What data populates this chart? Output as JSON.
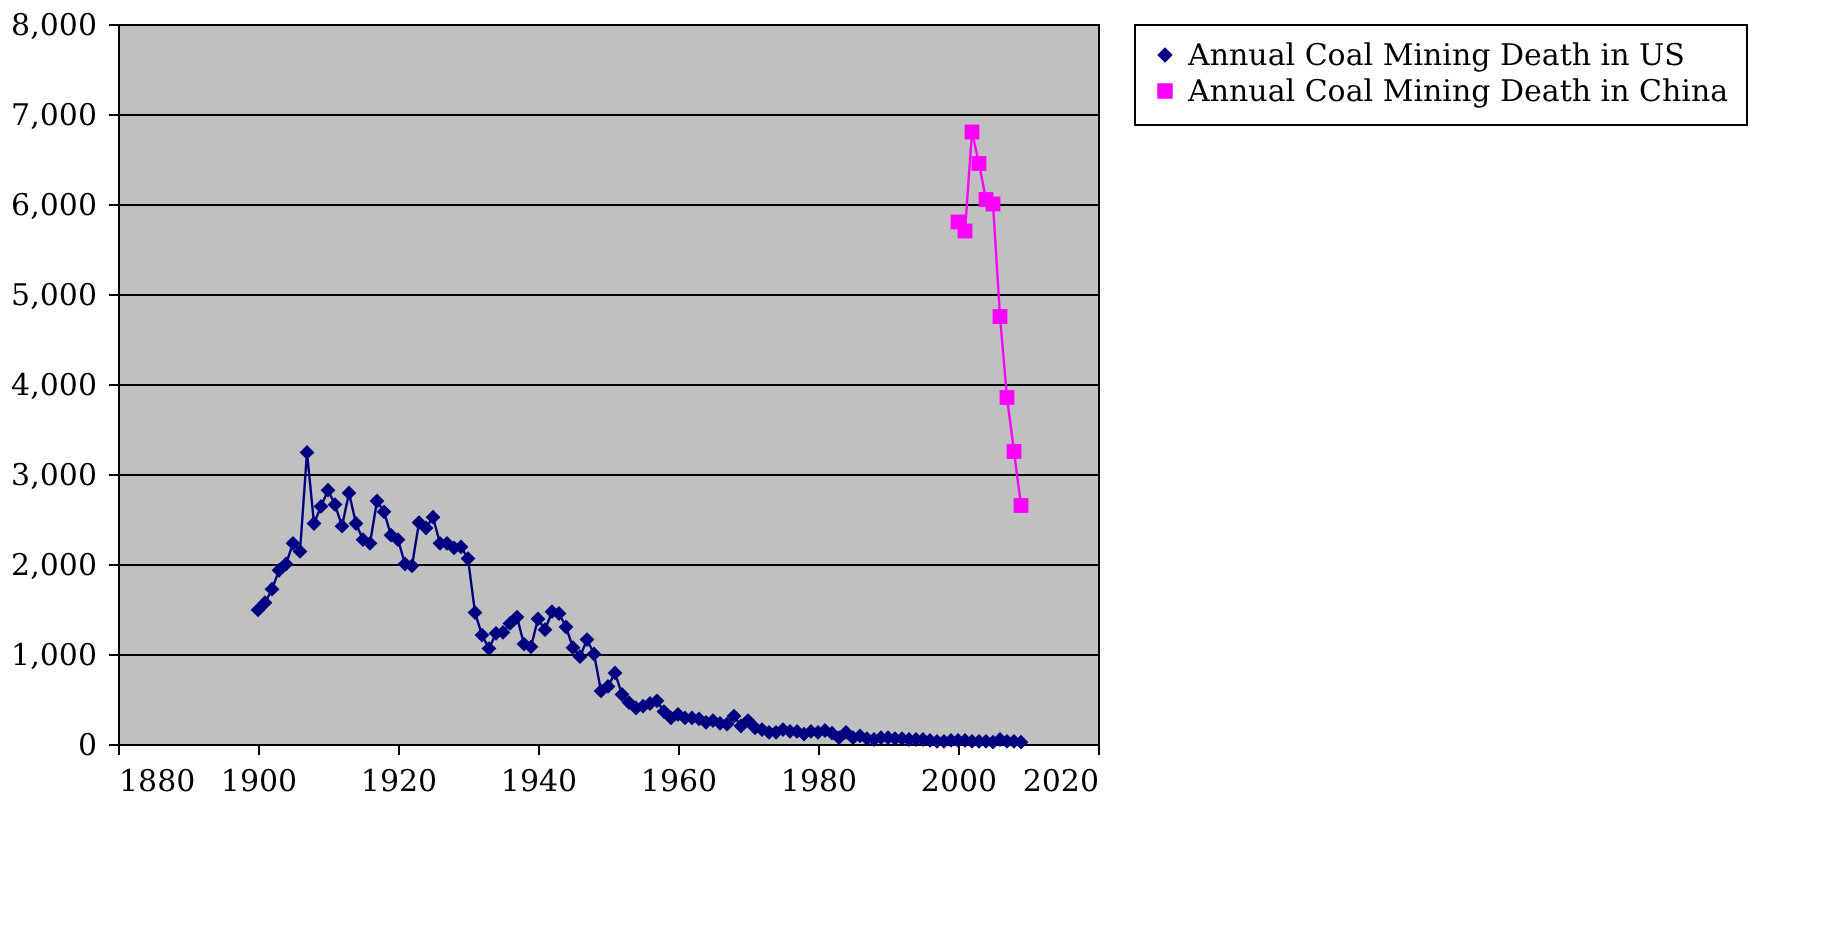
{
  "chart_data": {
    "type": "line",
    "xlim": [
      1880,
      2020
    ],
    "xticks": [
      1880,
      1900,
      1920,
      1940,
      1960,
      1980,
      2000,
      2020
    ],
    "ylim": [
      0,
      8000
    ],
    "yticks": [
      0,
      {
        "value": 1000,
        "label": "1,000"
      },
      {
        "value": 2000,
        "label": "2,000"
      },
      {
        "value": 3000,
        "label": "3,000"
      },
      {
        "value": 4000,
        "label": "4,000"
      },
      {
        "value": 5000,
        "label": "5,000"
      },
      {
        "value": 6000,
        "label": "6,000"
      },
      {
        "value": 7000,
        "label": "7,000"
      },
      {
        "value": 8000,
        "label": "8,000"
      }
    ],
    "grid": "y",
    "legend": "right",
    "series": [
      {
        "name": "Annual Coal Mining Death in US",
        "color": "#000080",
        "marker": "diamond",
        "x": [
          1900,
          1901,
          1902,
          1903,
          1904,
          1905,
          1906,
          1907,
          1908,
          1909,
          1910,
          1911,
          1912,
          1913,
          1914,
          1915,
          1916,
          1917,
          1918,
          1919,
          1920,
          1921,
          1922,
          1923,
          1924,
          1925,
          1926,
          1927,
          1928,
          1929,
          1930,
          1931,
          1932,
          1933,
          1934,
          1935,
          1936,
          1937,
          1938,
          1939,
          1940,
          1941,
          1942,
          1943,
          1944,
          1945,
          1946,
          1947,
          1948,
          1949,
          1950,
          1951,
          1952,
          1953,
          1954,
          1955,
          1956,
          1957,
          1958,
          1959,
          1960,
          1961,
          1962,
          1963,
          1964,
          1965,
          1966,
          1967,
          1968,
          1969,
          1970,
          1971,
          1972,
          1973,
          1974,
          1975,
          1976,
          1977,
          1978,
          1979,
          1980,
          1981,
          1982,
          1983,
          1984,
          1985,
          1986,
          1987,
          1988,
          1989,
          1990,
          1991,
          1992,
          1993,
          1994,
          1995,
          1996,
          1997,
          1998,
          1999,
          2000,
          2001,
          2002,
          2003,
          2004,
          2005,
          2006,
          2007,
          2008,
          2009
        ],
        "values": [
          1490,
          1570,
          1720,
          1930,
          2000,
          2230,
          2140,
          3240,
          2450,
          2640,
          2820,
          2660,
          2420,
          2790,
          2450,
          2270,
          2230,
          2700,
          2580,
          2320,
          2270,
          2000,
          1980,
          2460,
          2400,
          2520,
          2230,
          2230,
          2180,
          2190,
          2060,
          1460,
          1210,
          1060,
          1230,
          1240,
          1340,
          1410,
          1110,
          1080,
          1390,
          1270,
          1470,
          1450,
          1300,
          1070,
          970,
          1160,
          1000,
          590,
          640,
          790,
          550,
          460,
          400,
          420,
          450,
          480,
          360,
          290,
          330,
          290,
          290,
          280,
          240,
          260,
          230,
          220,
          310,
          200,
          260,
          180,
          160,
          130,
          130,
          160,
          140,
          140,
          110,
          140,
          130,
          150,
          120,
          70,
          130,
          70,
          90,
          60,
          50,
          70,
          70,
          60,
          60,
          50,
          50,
          50,
          40,
          30,
          30,
          40,
          40,
          40,
          30,
          30,
          30,
          20,
          50,
          30,
          30,
          20
        ]
      },
      {
        "name": "Annual Coal Mining Death in China",
        "color": "#ff00ff",
        "marker": "square",
        "x": [
          2000,
          2001,
          2002,
          2003,
          2004,
          2005,
          2006,
          2007,
          2008,
          2009
        ],
        "values": [
          5800,
          5700,
          6800,
          6450,
          6050,
          6000,
          4750,
          3850,
          3250,
          2650
        ]
      }
    ]
  }
}
